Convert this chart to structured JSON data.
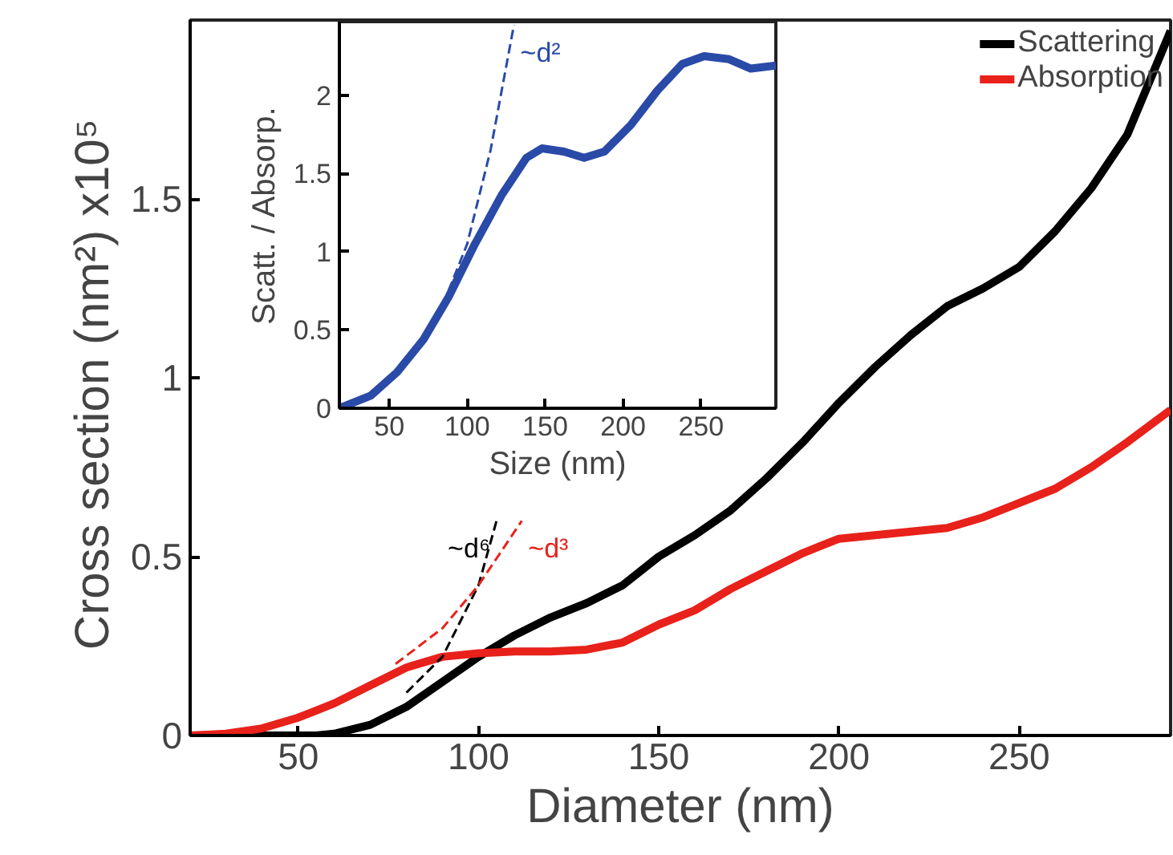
{
  "chart_data": [
    {
      "type": "line",
      "xlabel": "Diameter (nm)",
      "ylabel": "Cross section (nm²)  x10⁵",
      "xlim": [
        20,
        292
      ],
      "ylim": [
        0,
        2
      ],
      "xticks": [
        50,
        100,
        150,
        200,
        250
      ],
      "yticks": [
        0,
        0.5,
        1,
        1.5
      ],
      "grid": false,
      "legend": "top right",
      "line_style": "solid",
      "x": [
        20,
        30,
        40,
        50,
        55,
        60,
        70,
        80,
        90,
        100,
        110,
        120,
        130,
        140,
        150,
        160,
        170,
        180,
        190,
        200,
        210,
        220,
        230,
        240,
        250,
        260,
        270,
        280,
        292
      ],
      "series": [
        {
          "name": "Scattering",
          "color": "#000000",
          "values": [
            0,
            0,
            0,
            0,
            0,
            0.005,
            0.03,
            0.08,
            0.15,
            0.22,
            0.28,
            0.33,
            0.37,
            0.42,
            0.5,
            0.56,
            0.63,
            0.72,
            0.82,
            0.93,
            1.03,
            1.12,
            1.2,
            1.25,
            1.31,
            1.41,
            1.53,
            1.68,
            1.97
          ]
        },
        {
          "name": "Absorption",
          "color": "#e8211b",
          "values": [
            0,
            0.005,
            0.02,
            0.05,
            0.07,
            0.09,
            0.14,
            0.19,
            0.22,
            0.23,
            0.235,
            0.235,
            0.24,
            0.26,
            0.31,
            0.35,
            0.41,
            0.46,
            0.51,
            0.55,
            0.56,
            0.57,
            0.58,
            0.61,
            0.65,
            0.69,
            0.75,
            0.82,
            0.91
          ]
        },
        {
          "type": "line",
          "color": "#000000",
          "line_style": "dashed",
          "x": [
            80,
            90,
            100,
            105
          ],
          "values": [
            0.12,
            0.22,
            0.42,
            0.6
          ]
        },
        {
          "type": "line",
          "color": "#e8211b",
          "line_style": "dashed",
          "x": [
            77,
            90,
            100,
            112
          ],
          "values": [
            0.2,
            0.3,
            0.42,
            0.6
          ]
        }
      ],
      "annotations": [
        "~d⁶",
        "~d³"
      ]
    },
    {
      "type": "line",
      "xlabel": "Size (nm)",
      "ylabel": "Scatt. / Absorp.",
      "xlim": [
        18,
        298
      ],
      "ylim": [
        0,
        2.47
      ],
      "xticks": [
        50,
        100,
        150,
        200,
        250
      ],
      "yticks": [
        0,
        0.5,
        1,
        1.5,
        2
      ],
      "grid": false,
      "line_style": "solid",
      "x": [
        18,
        38,
        55,
        72,
        88,
        105,
        122,
        138,
        148,
        162,
        175,
        188,
        205,
        222,
        238,
        252,
        268,
        282,
        298
      ],
      "series": [
        {
          "color": "#2a4aa8",
          "values": [
            0,
            0.08,
            0.23,
            0.44,
            0.71,
            1.05,
            1.36,
            1.6,
            1.66,
            1.64,
            1.6,
            1.64,
            1.81,
            2.03,
            2.2,
            2.25,
            2.23,
            2.17,
            2.19
          ]
        },
        {
          "type": "line",
          "color": "#2a4aa8",
          "line_style": "dashed",
          "x": [
            88,
            100,
            115,
            130
          ],
          "values": [
            0.75,
            1.05,
            1.65,
            2.45
          ]
        }
      ],
      "annotations": [
        "~d²"
      ]
    }
  ]
}
